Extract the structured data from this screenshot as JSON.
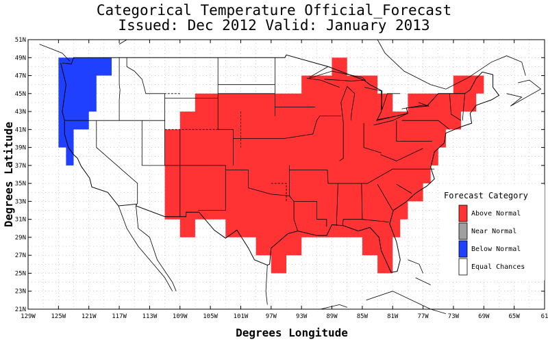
{
  "title": {
    "line1": "Categorical Temperature Official_Forecast",
    "line2": "Issued: Dec 2012 Valid: January 2013"
  },
  "axes": {
    "xlabel": "Degrees Longitude",
    "ylabel": "Degrees Latitude",
    "x_ticks": [
      "129W",
      "125W",
      "121W",
      "117W",
      "113W",
      "109W",
      "105W",
      "101W",
      "97W",
      "93W",
      "89W",
      "85W",
      "81W",
      "77W",
      "73W",
      "69W",
      "65W",
      "61"
    ],
    "y_ticks": [
      "51N",
      "49N",
      "47N",
      "45N",
      "43N",
      "41N",
      "39N",
      "37N",
      "35N",
      "33N",
      "31N",
      "29N",
      "27N",
      "25N",
      "23N",
      "21N"
    ],
    "xlim": [
      -129,
      -61
    ],
    "ylim": [
      21,
      51
    ],
    "grid": true
  },
  "legend": {
    "title": "Forecast Category",
    "placement": "right",
    "items": [
      {
        "label": "Above Normal",
        "color": "#ff3333"
      },
      {
        "label": "Near Normal",
        "color": "#a0a0a0"
      },
      {
        "label": "Below Normal",
        "color": "#2040ff"
      },
      {
        "label": "Equal Chances",
        "color": "#ffffff"
      }
    ]
  },
  "map_regions": {
    "below_normal_color": "#2040ff",
    "above_normal_color": "#ff3333",
    "below_normal_area": [
      [
        -125,
        49
      ],
      [
        -118,
        49
      ],
      [
        -118,
        47
      ],
      [
        -120,
        47
      ],
      [
        -120,
        43
      ],
      [
        -121,
        43
      ],
      [
        -121,
        41
      ],
      [
        -123,
        41
      ],
      [
        -123,
        37
      ],
      [
        -124,
        37
      ],
      [
        -124,
        39
      ],
      [
        -125,
        39
      ]
    ],
    "above_normal_area": [
      [
        -105,
        45
      ],
      [
        -93,
        45
      ],
      [
        -93,
        47
      ],
      [
        -89,
        47
      ],
      [
        -89,
        49
      ],
      [
        -87,
        49
      ],
      [
        -87,
        47
      ],
      [
        -83,
        47
      ],
      [
        -83,
        45
      ],
      [
        -81,
        45
      ],
      [
        -81,
        43
      ],
      [
        -79,
        43
      ],
      [
        -79,
        45
      ],
      [
        -73,
        45
      ],
      [
        -73,
        47
      ],
      [
        -69,
        47
      ],
      [
        -69,
        45
      ],
      [
        -70,
        45
      ],
      [
        -70,
        43
      ],
      [
        -72,
        43
      ],
      [
        -72,
        41
      ],
      [
        -74,
        41
      ],
      [
        -74,
        39
      ],
      [
        -75,
        39
      ],
      [
        -75,
        37
      ],
      [
        -76,
        37
      ],
      [
        -76,
        35
      ],
      [
        -77,
        35
      ],
      [
        -77,
        33
      ],
      [
        -79,
        33
      ],
      [
        -79,
        31
      ],
      [
        -80,
        31
      ],
      [
        -80,
        29
      ],
      [
        -81,
        29
      ],
      [
        -81,
        25
      ],
      [
        -83,
        25
      ],
      [
        -83,
        27
      ],
      [
        -85,
        27
      ],
      [
        -85,
        29
      ],
      [
        -93,
        29
      ],
      [
        -93,
        27
      ],
      [
        -95,
        27
      ],
      [
        -95,
        25
      ],
      [
        -97,
        25
      ],
      [
        -97,
        27
      ],
      [
        -99,
        27
      ],
      [
        -99,
        29
      ],
      [
        -103,
        29
      ],
      [
        -103,
        31
      ],
      [
        -107,
        31
      ],
      [
        -107,
        29
      ],
      [
        -109,
        29
      ],
      [
        -109,
        31
      ],
      [
        -111,
        31
      ],
      [
        -111,
        41
      ],
      [
        -109,
        41
      ],
      [
        -109,
        43
      ],
      [
        -107,
        43
      ],
      [
        -107,
        45
      ]
    ]
  },
  "country_border": [
    [
      -124.5,
      48.4
    ],
    [
      -123.3,
      48.3
    ],
    [
      -123,
      49
    ],
    [
      -95.2,
      49
    ],
    [
      -95,
      49.3
    ],
    [
      -89.5,
      48
    ],
    [
      -84.8,
      46.5
    ],
    [
      -84,
      46
    ],
    [
      -82.4,
      45.3
    ],
    [
      -82.5,
      43
    ],
    [
      -83.1,
      42
    ],
    [
      -79,
      42.8
    ],
    [
      -79.2,
      43.4
    ],
    [
      -76.5,
      43.6
    ],
    [
      -75,
      45
    ],
    [
      -71.5,
      45
    ],
    [
      -70.8,
      45.4
    ],
    [
      -70,
      46.7
    ],
    [
      -69.2,
      47.4
    ],
    [
      -67.8,
      47.1
    ],
    [
      -67.8,
      45.7
    ],
    [
      -67,
      44.8
    ],
    [
      -68,
      44.3
    ],
    [
      -70,
      43.7
    ],
    [
      -70.8,
      42.8
    ],
    [
      -70.6,
      41.7
    ],
    [
      -72,
      41.3
    ],
    [
      -74,
      40.6
    ],
    [
      -74.2,
      39.5
    ],
    [
      -75.5,
      38.5
    ],
    [
      -76,
      36.8
    ],
    [
      -75.5,
      35.5
    ],
    [
      -76.5,
      34.7
    ],
    [
      -78,
      33.9
    ],
    [
      -79.3,
      32.9
    ],
    [
      -80.9,
      32
    ],
    [
      -81.4,
      30.5
    ],
    [
      -80.5,
      28.5
    ],
    [
      -80,
      26.5
    ],
    [
      -80.4,
      25.2
    ],
    [
      -81.2,
      25.1
    ],
    [
      -81.7,
      26
    ],
    [
      -82.5,
      27.5
    ],
    [
      -82.8,
      29
    ],
    [
      -84,
      30.1
    ],
    [
      -85.5,
      29.7
    ],
    [
      -87.5,
      30.3
    ],
    [
      -89,
      30.4
    ],
    [
      -89.7,
      29.2
    ],
    [
      -91,
      29.2
    ],
    [
      -93.5,
      29.7
    ],
    [
      -94.8,
      29.4
    ],
    [
      -97,
      27.8
    ],
    [
      -97.2,
      26
    ],
    [
      -97.5,
      25.9
    ],
    [
      -99.2,
      26.5
    ],
    [
      -100,
      27.8
    ],
    [
      -101.5,
      29.8
    ],
    [
      -103,
      28.9
    ],
    [
      -104.5,
      29.8
    ],
    [
      -106.5,
      31.8
    ],
    [
      -108.2,
      31.8
    ],
    [
      -108.2,
      31.3
    ],
    [
      -111,
      31.3
    ],
    [
      -114.8,
      32.5
    ],
    [
      -114.7,
      32.7
    ],
    [
      -117.1,
      32.5
    ],
    [
      -118.5,
      34
    ],
    [
      -120.6,
      34.6
    ],
    [
      -120.9,
      35.6
    ],
    [
      -122,
      36.9
    ],
    [
      -122.5,
      37.8
    ],
    [
      -123,
      38.2
    ],
    [
      -123.7,
      39
    ],
    [
      -124.2,
      40.5
    ],
    [
      -124.2,
      42
    ],
    [
      -124.5,
      43
    ],
    [
      -124,
      46
    ],
    [
      -124.7,
      48.4
    ]
  ],
  "state_lines": [
    [
      [
        -117,
        49
      ],
      [
        -117,
        46
      ],
      [
        -116.9,
        45.4
      ],
      [
        -117,
        44.3
      ],
      [
        -117,
        42
      ]
    ],
    [
      [
        -124.2,
        42
      ],
      [
        -111,
        42
      ]
    ],
    [
      [
        -120,
        42
      ],
      [
        -120,
        39
      ],
      [
        -114.6,
        35
      ],
      [
        -114.6,
        32.7
      ]
    ],
    [
      [
        -114,
        42
      ],
      [
        -114,
        37
      ]
    ],
    [
      [
        -114,
        37
      ],
      [
        -103,
        37
      ]
    ],
    [
      [
        -109,
        41
      ],
      [
        -109,
        31.3
      ]
    ],
    [
      [
        -111,
        45
      ],
      [
        -111,
        37
      ]
    ],
    [
      [
        -111,
        44.5
      ],
      [
        -104,
        44.5
      ]
    ],
    [
      [
        -116,
        49
      ],
      [
        -116,
        48
      ],
      [
        -115,
        47.5
      ],
      [
        -114,
        46.6
      ],
      [
        -113.5,
        45
      ],
      [
        -111,
        45
      ]
    ],
    [
      [
        -104,
        49
      ],
      [
        -104,
        41
      ],
      [
        -102,
        41
      ],
      [
        -102,
        37
      ]
    ],
    [
      [
        -104,
        45
      ],
      [
        -96.5,
        45
      ]
    ],
    [
      [
        -104,
        46
      ],
      [
        -96.5,
        46
      ]
    ],
    [
      [
        -96.5,
        49
      ],
      [
        -96.5,
        42.5
      ]
    ],
    [
      [
        -102,
        40
      ],
      [
        -95.3,
        40
      ]
    ],
    [
      [
        -103,
        37
      ],
      [
        -103,
        32
      ],
      [
        -106.6,
        32
      ]
    ],
    [
      [
        -103,
        36.5
      ],
      [
        -100,
        36.5
      ],
      [
        -100,
        34.5
      ],
      [
        -97,
        33.8
      ],
      [
        -94.5,
        33.6
      ]
    ],
    [
      [
        -94.6,
        37
      ],
      [
        -94.6,
        33.6
      ],
      [
        -94,
        33
      ],
      [
        -94,
        31
      ],
      [
        -93.5,
        29.7
      ]
    ],
    [
      [
        -91.2,
        43.5
      ],
      [
        -96.5,
        43.5
      ]
    ],
    [
      [
        -95.3,
        40
      ],
      [
        -91.5,
        40.5
      ],
      [
        -91,
        42
      ],
      [
        -90.6,
        42.5
      ]
    ],
    [
      [
        -89.6,
        36.5
      ],
      [
        -89.5,
        35
      ],
      [
        -88,
        35
      ],
      [
        -85.6,
        35
      ],
      [
        -84.3,
        35
      ],
      [
        -81,
        36.6
      ],
      [
        -75.5,
        36.6
      ]
    ],
    [
      [
        -94.6,
        36.5
      ],
      [
        -89.6,
        36.5
      ]
    ],
    [
      [
        -94,
        33
      ],
      [
        -91,
        33
      ],
      [
        -91,
        31
      ],
      [
        -89.7,
        31
      ],
      [
        -89.7,
        30.2
      ]
    ],
    [
      [
        -88.2,
        35
      ],
      [
        -88.4,
        30.3
      ]
    ],
    [
      [
        -85.1,
        35
      ],
      [
        -85,
        31
      ],
      [
        -87.5,
        31
      ],
      [
        -87.6,
        30.3
      ]
    ],
    [
      [
        -85,
        31
      ],
      [
        -81.5,
        30.7
      ]
    ],
    [
      [
        -83,
        34.9
      ],
      [
        -81,
        32
      ]
    ],
    [
      [
        -80.5,
        34.9
      ],
      [
        -78.5,
        33.9
      ]
    ],
    [
      [
        -87.5,
        41.8
      ],
      [
        -87.5,
        37.8
      ],
      [
        -88,
        37.5
      ]
    ],
    [
      [
        -84.8,
        41.7
      ],
      [
        -84.8,
        39
      ],
      [
        -82.5,
        38.4
      ]
    ],
    [
      [
        -80.5,
        42
      ],
      [
        -80.5,
        39.7
      ],
      [
        -75.8,
        39.7
      ]
    ],
    [
      [
        -82.6,
        38.2
      ],
      [
        -80.5,
        37.5
      ],
      [
        -77,
        38.9
      ]
    ],
    [
      [
        -79.8,
        42
      ],
      [
        -75,
        42
      ],
      [
        -73.5,
        41
      ]
    ],
    [
      [
        -73.5,
        45
      ],
      [
        -73.3,
        42.7
      ],
      [
        -72,
        42
      ]
    ],
    [
      [
        -71.8,
        42
      ],
      [
        -71.5,
        45
      ]
    ],
    [
      [
        -90.6,
        42.5
      ],
      [
        -87.8,
        42.5
      ]
    ],
    [
      [
        -92.3,
        46.7
      ],
      [
        -90.5,
        46.5
      ],
      [
        -88,
        45.7
      ]
    ],
    [
      [
        -89.5,
        48
      ],
      [
        -92,
        46.8
      ]
    ]
  ],
  "dashed_lines": [
    [
      [
        -109,
        45
      ],
      [
        -111,
        45
      ]
    ],
    [
      [
        -101,
        43
      ],
      [
        -101,
        39
      ]
    ],
    [
      [
        -97,
        35
      ],
      [
        -95,
        35
      ],
      [
        -95,
        33
      ]
    ],
    [
      [
        -111,
        41
      ],
      [
        -104,
        41
      ]
    ]
  ],
  "lakes": [
    [
      [
        -92,
        46.7
      ],
      [
        -89,
        47.5
      ],
      [
        -85,
        46.8
      ],
      [
        -84.6,
        46.5
      ],
      [
        -86.5,
        46.4
      ],
      [
        -90,
        46.6
      ]
    ],
    [
      [
        -87.5,
        41.8
      ],
      [
        -87.8,
        44
      ],
      [
        -87,
        45.8
      ],
      [
        -86,
        45
      ],
      [
        -86.4,
        43
      ],
      [
        -86.5,
        42
      ]
    ],
    [
      [
        -84.7,
        45.7
      ],
      [
        -82.5,
        45.3
      ],
      [
        -82.4,
        43.2
      ],
      [
        -81.7,
        45
      ],
      [
        -80,
        45
      ]
    ],
    [
      [
        -83.5,
        41.5
      ],
      [
        -81,
        42
      ],
      [
        -79,
        42.8
      ],
      [
        -80.5,
        42.5
      ],
      [
        -83,
        42.1
      ]
    ],
    [
      [
        -79.8,
        43.3
      ],
      [
        -77,
        43.7
      ],
      [
        -76.2,
        43.6
      ],
      [
        -77.6,
        44
      ]
    ]
  ],
  "canada_coast": [
    [
      [
        -127.5,
        50.5
      ],
      [
        -126,
        50
      ],
      [
        -124.5,
        49.5
      ],
      [
        -123.5,
        48.6
      ]
    ],
    [
      [
        -117,
        50.5
      ],
      [
        -116,
        51
      ]
    ],
    [
      [
        -83,
        51
      ],
      [
        -82,
        49.5
      ],
      [
        -79.5,
        47.5
      ],
      [
        -76,
        46
      ],
      [
        -74,
        45.5
      ],
      [
        -71,
        46.8
      ],
      [
        -68,
        48.5
      ],
      [
        -66,
        49.2
      ],
      [
        -64,
        48.5
      ],
      [
        -63.5,
        47
      ]
    ],
    [
      [
        -66,
        45
      ],
      [
        -64,
        44.6
      ],
      [
        -65.5,
        43.6
      ],
      [
        -61.5,
        45.5
      ],
      [
        -63,
        46.5
      ],
      [
        -64.5,
        46.2
      ]
    ]
  ],
  "mexico_coast": [
    [
      [
        -114.8,
        32.5
      ],
      [
        -114.5,
        30
      ],
      [
        -113,
        29
      ],
      [
        -112,
        26.5
      ],
      [
        -110,
        24
      ],
      [
        -109.5,
        23
      ]
    ],
    [
      [
        -117.1,
        32.5
      ],
      [
        -116,
        30
      ],
      [
        -114.5,
        28
      ],
      [
        -112.5,
        26
      ],
      [
        -111,
        24.5
      ],
      [
        -110,
        23
      ]
    ],
    [
      [
        -97.5,
        25.9
      ],
      [
        -97.7,
        23
      ],
      [
        -97.5,
        21.5
      ]
    ],
    [
      [
        -90.5,
        21
      ],
      [
        -88,
        21.5
      ],
      [
        -87,
        21.2
      ]
    ],
    [
      [
        -84.5,
        22
      ],
      [
        -81,
        23
      ],
      [
        -76,
        21
      ],
      [
        -74,
        20.5
      ]
    ],
    [
      [
        -79,
        26.5
      ],
      [
        -77.5,
        26
      ],
      [
        -77,
        25
      ]
    ],
    [
      [
        -78,
        24.5
      ],
      [
        -76,
        23.7
      ]
    ]
  ]
}
